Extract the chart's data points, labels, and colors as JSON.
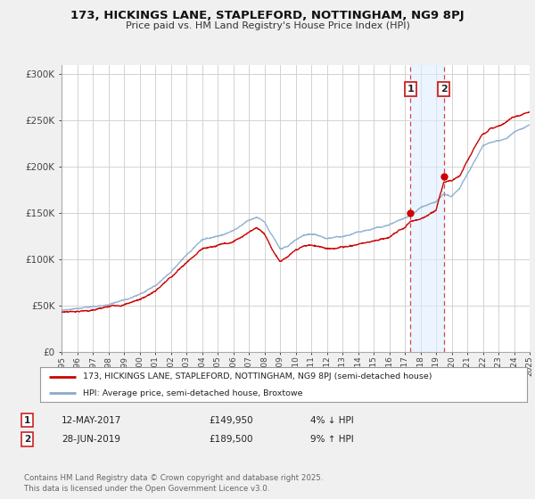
{
  "title": "173, HICKINGS LANE, STAPLEFORD, NOTTINGHAM, NG9 8PJ",
  "subtitle": "Price paid vs. HM Land Registry's House Price Index (HPI)",
  "hpi_label": "HPI: Average price, semi-detached house, Broxtowe",
  "property_label": "173, HICKINGS LANE, STAPLEFORD, NOTTINGHAM, NG9 8PJ (semi-detached house)",
  "property_color": "#cc0000",
  "hpi_color": "#88aacc",
  "background_color": "#f0f0f0",
  "plot_bg_color": "#ffffff",
  "grid_color": "#cccccc",
  "ylim": [
    0,
    310000
  ],
  "yticks": [
    0,
    50000,
    100000,
    150000,
    200000,
    250000,
    300000
  ],
  "ytick_labels": [
    "£0",
    "£50K",
    "£100K",
    "£150K",
    "£200K",
    "£250K",
    "£300K"
  ],
  "sale1_date": 2017.36,
  "sale1_price": 149950,
  "sale1_label": "1",
  "sale1_text": "12-MAY-2017",
  "sale1_price_text": "£149,950",
  "sale1_hpi_text": "4% ↓ HPI",
  "sale2_date": 2019.49,
  "sale2_price": 189500,
  "sale2_label": "2",
  "sale2_text": "28-JUN-2019",
  "sale2_price_text": "£189,500",
  "sale2_hpi_text": "9% ↑ HPI",
  "footer": "Contains HM Land Registry data © Crown copyright and database right 2025.\nThis data is licensed under the Open Government Licence v3.0.",
  "xmin": 1995,
  "xmax": 2025
}
